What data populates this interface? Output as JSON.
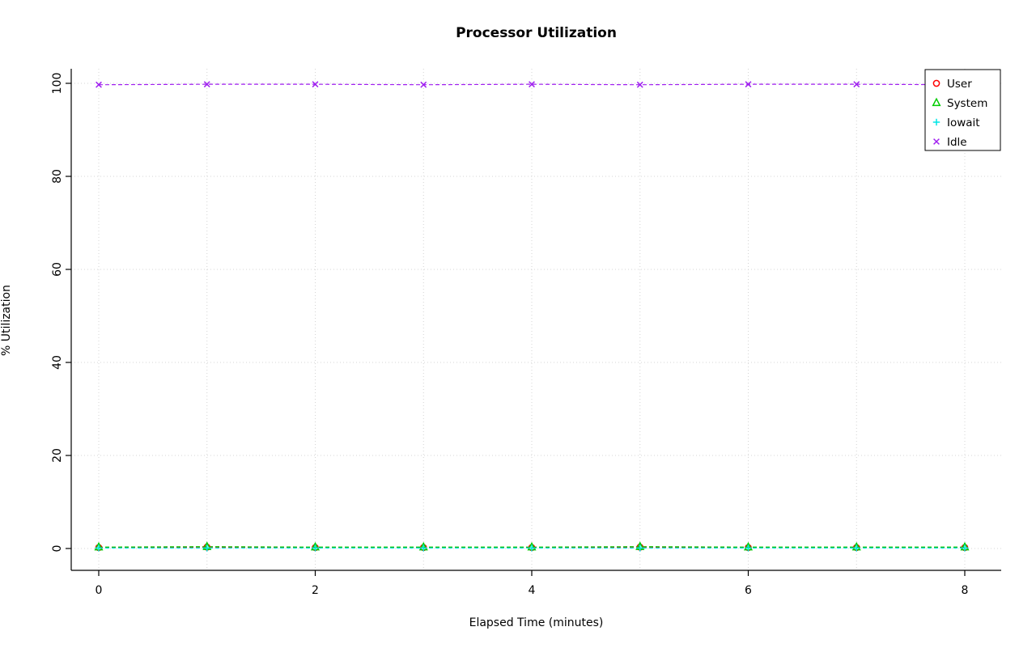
{
  "figure": {
    "title": "Processor Utilization",
    "xlabel": "Elapsed Time (minutes)",
    "ylabel": "% Utilization"
  },
  "chart_data": {
    "type": "line",
    "title": "Processor Utilization",
    "xlabel": "Elapsed Time (minutes)",
    "ylabel": "% Utilization",
    "x": [
      0,
      1,
      2,
      3,
      4,
      5,
      6,
      7,
      8
    ],
    "xlim": [
      0,
      8
    ],
    "ylim": [
      0,
      100
    ],
    "x_ticks": [
      0,
      2,
      4,
      6,
      8
    ],
    "y_ticks": [
      0,
      20,
      40,
      60,
      80,
      100
    ],
    "x_grid": [
      0,
      1,
      2,
      3,
      4,
      5,
      6,
      7,
      8
    ],
    "y_grid": [
      0,
      20,
      40,
      60,
      80,
      100
    ],
    "grid": true,
    "grid_style": "dotted",
    "line_style": "dashed",
    "legend": {
      "position": "top-right",
      "entries": [
        "User",
        "System",
        "Iowait",
        "Idle"
      ]
    },
    "series": [
      {
        "name": "User",
        "color": "#FF0000",
        "marker": "circle",
        "values": [
          0.2,
          0.3,
          0.2,
          0.2,
          0.2,
          0.3,
          0.2,
          0.2,
          0.2
        ]
      },
      {
        "name": "System",
        "color": "#00CD00",
        "marker": "triangle",
        "values": [
          0.3,
          0.4,
          0.3,
          0.3,
          0.3,
          0.4,
          0.3,
          0.3,
          0.3
        ]
      },
      {
        "name": "Iowait",
        "color": "#00E5E5",
        "marker": "plus",
        "values": [
          0.1,
          0.1,
          0.1,
          0.1,
          0.1,
          0.1,
          0.1,
          0.1,
          0.1
        ]
      },
      {
        "name": "Idle",
        "color": "#A020F0",
        "marker": "x",
        "values": [
          99.7,
          99.8,
          99.8,
          99.7,
          99.8,
          99.7,
          99.8,
          99.8,
          99.7
        ]
      }
    ]
  },
  "colors": {
    "grid": "#D4D4D4",
    "axis": "#000000",
    "background": "#FFFFFF",
    "legend_border": "#000000",
    "legend_fill": "#FFFFFF"
  }
}
